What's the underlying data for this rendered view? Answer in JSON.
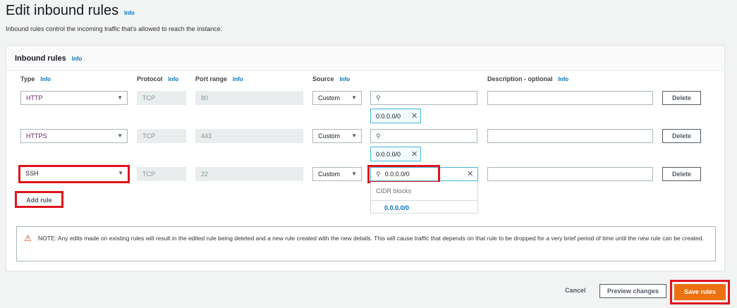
{
  "page": {
    "title": "Edit inbound rules",
    "info": "Info",
    "subtitle": "Inbound rules control the incoming traffic that's allowed to reach the instance."
  },
  "panel": {
    "title": "Inbound rules",
    "info": "Info",
    "columns": {
      "type": "Type",
      "protocol": "Protocol",
      "port": "Port range",
      "source": "Source",
      "description": "Description - optional",
      "info": "Info"
    },
    "rules": [
      {
        "type": "HTTP",
        "protocol": "TCP",
        "port": "80",
        "source": "Custom",
        "search": "",
        "token": "0.0.0.0/0",
        "description": "",
        "delete": "Delete"
      },
      {
        "type": "HTTPS",
        "protocol": "TCP",
        "port": "443",
        "source": "Custom",
        "search": "",
        "token": "0.0.0.0/0",
        "description": "",
        "delete": "Delete"
      },
      {
        "type": "SSH",
        "protocol": "TCP",
        "port": "22",
        "source": "Custom",
        "search": "0.0.0.0/0",
        "description": "",
        "delete": "Delete"
      }
    ],
    "dropdown": {
      "group": "CIDR blocks",
      "option": "0.0.0.0/0"
    },
    "add_rule": "Add rule",
    "notice": "NOTE: Any edits made on existing rules will result in the edited rule being deleted and a new rule created with the new details. This will cause traffic that depends on that rule to be dropped for a very brief period of time until the new rule can be created."
  },
  "footer": {
    "cancel": "Cancel",
    "preview": "Preview changes",
    "save": "Save rules"
  },
  "colors": {
    "accent": "#ec7211",
    "highlight": "#e0141e",
    "link": "#0073bb"
  }
}
